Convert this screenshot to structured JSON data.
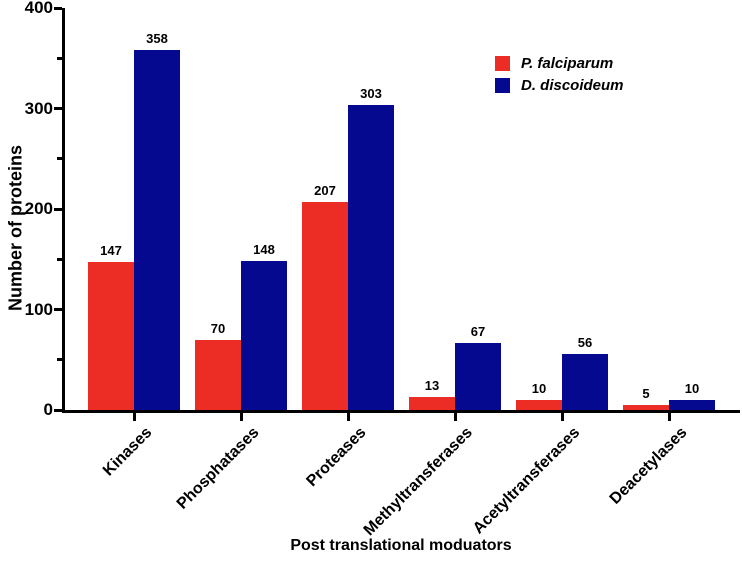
{
  "chart_data": {
    "type": "bar",
    "title": "",
    "xlabel": "Post translational moduators",
    "ylabel": "Number of proteins",
    "categories": [
      "Kinases",
      "Phosphatases",
      "Proteases",
      "Methyltransferases",
      "Acetyltransferases",
      "Deacetylases"
    ],
    "series": [
      {
        "name": "P. falciparum",
        "color": "#EC2D26",
        "values": [
          147,
          70,
          207,
          13,
          10,
          5
        ]
      },
      {
        "name": "D. discoideum",
        "color": "#04098F",
        "values": [
          358,
          148,
          303,
          67,
          56,
          10
        ]
      }
    ],
    "ylim": [
      0,
      400
    ],
    "yticks": [
      0,
      100,
      200,
      300,
      400
    ],
    "y_minor_ticks": [
      50,
      150,
      250,
      350
    ],
    "bar_value_labels": true,
    "grid": false,
    "legend_position": "top-right",
    "axis_color": "#000000"
  }
}
